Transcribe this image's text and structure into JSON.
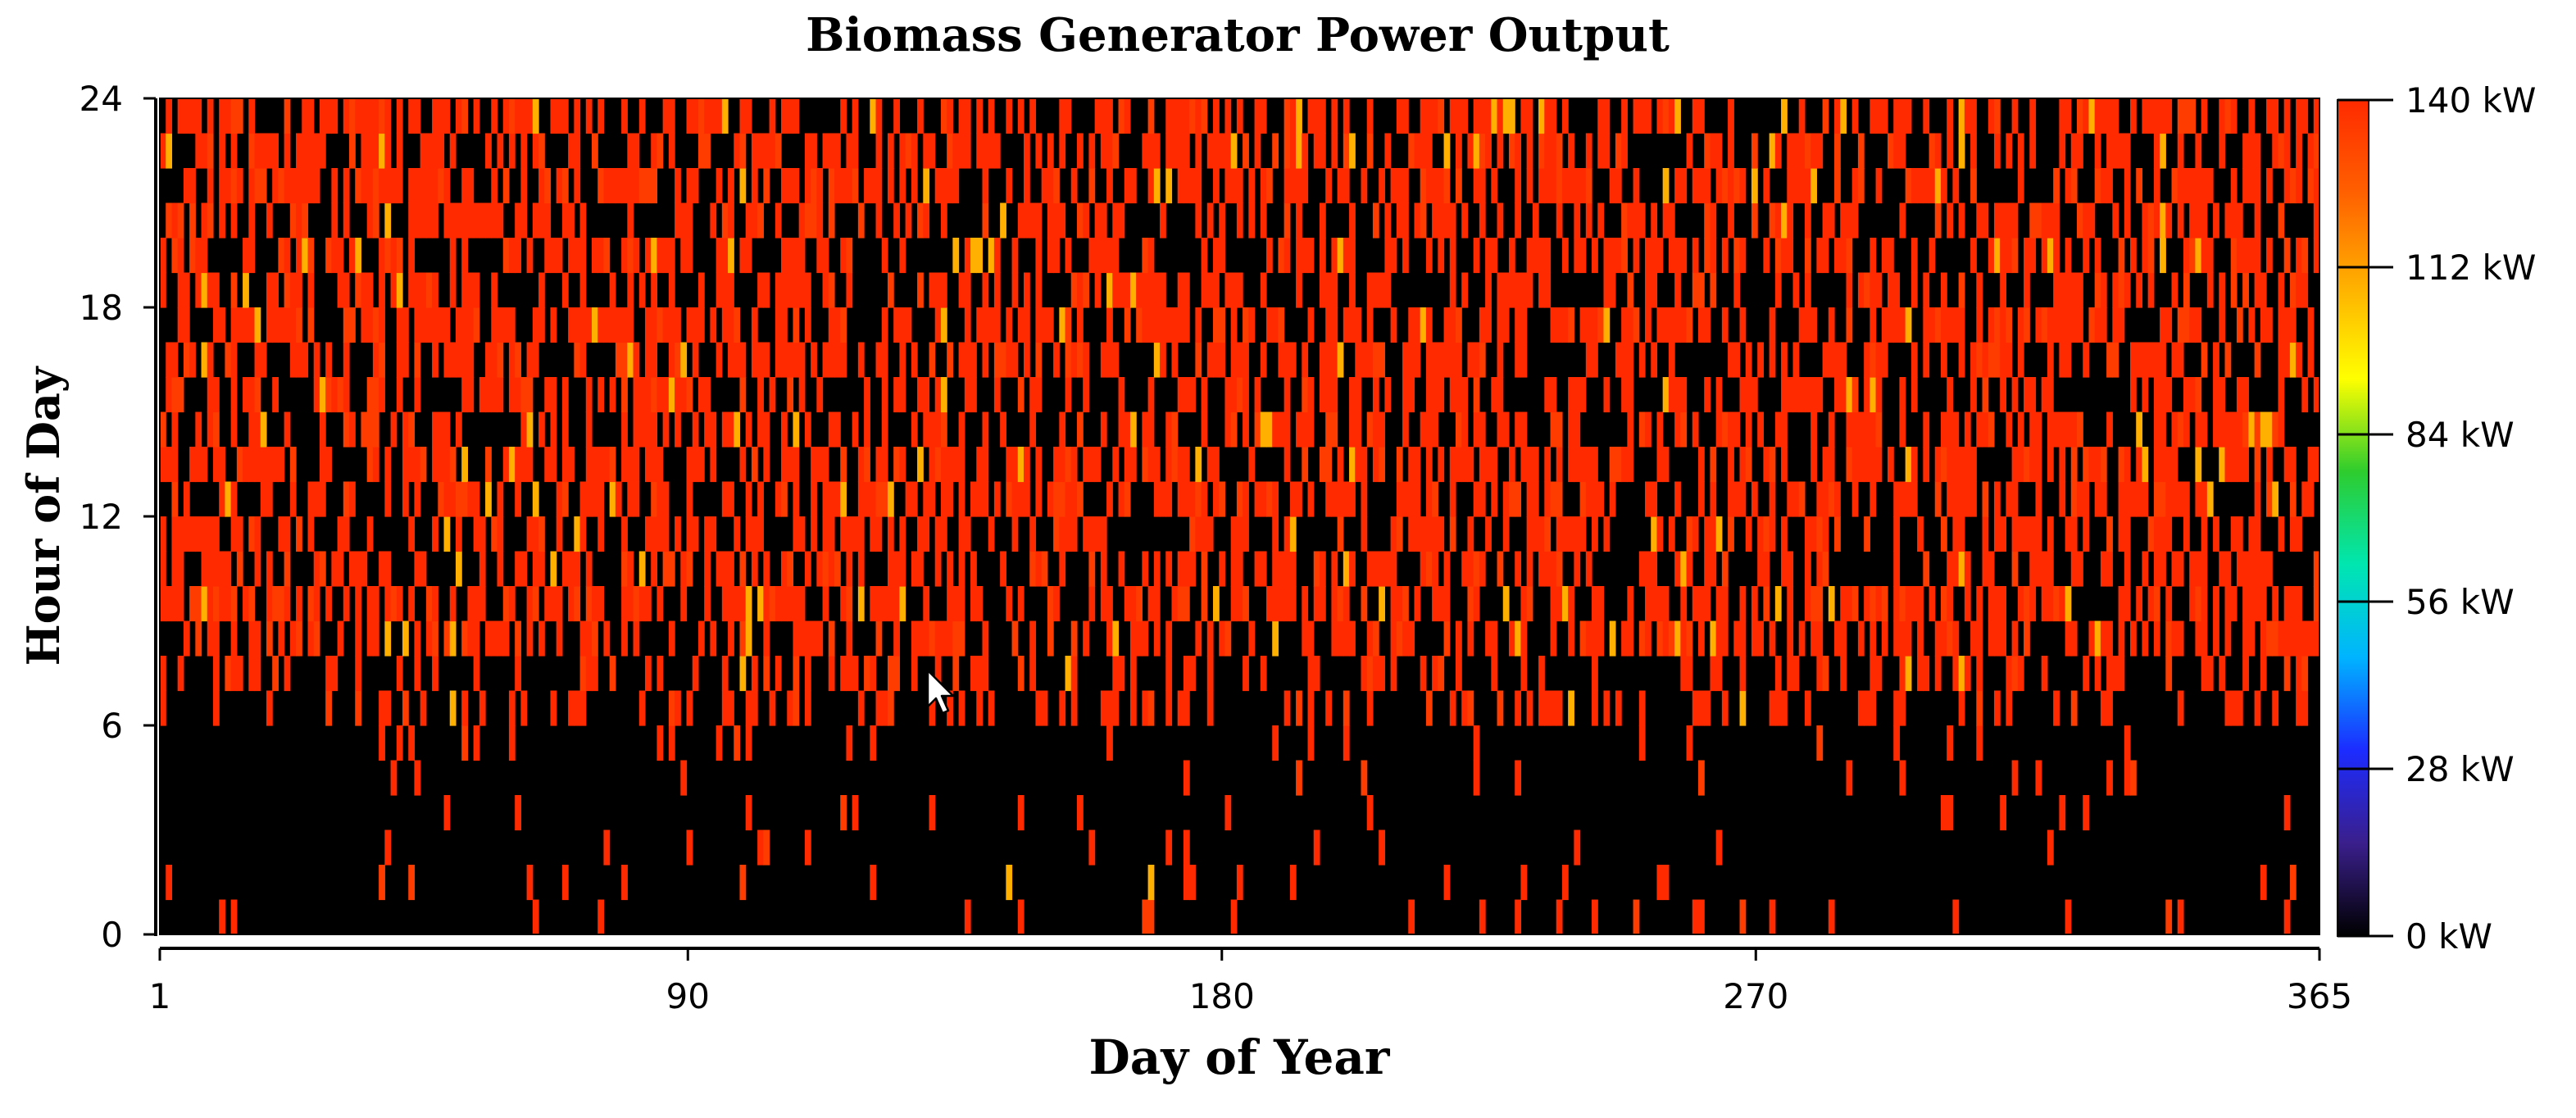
{
  "chart_data": {
    "type": "heatmap",
    "title": "Biomass Generator Power Output",
    "xlabel": "Day of Year",
    "ylabel": "Hour of Day",
    "x_range": [
      1,
      365
    ],
    "y_range": [
      0,
      24
    ],
    "x_ticks": [
      "1",
      "90",
      "180",
      "270",
      "365"
    ],
    "y_ticks": [
      "0",
      "6",
      "12",
      "18",
      "24"
    ],
    "colorbar": {
      "range": [
        0,
        140
      ],
      "unit": "kW",
      "ticks": [
        "0 kW",
        "28 kW",
        "56 kW",
        "84 kW",
        "112 kW",
        "140 kW"
      ],
      "colors": [
        "#000000",
        "#3a1f8c",
        "#1c2cff",
        "#00b4ff",
        "#00e6b0",
        "#2ecc2e",
        "#ffff00",
        "#ffb000",
        "#ff6000",
        "#ff2a00"
      ]
    },
    "rated_output_kw": 140,
    "pattern": {
      "description_is_visual": true,
      "night_hours_mostly_off": [
        0,
        6
      ],
      "day_hours_mostly_on": [
        6,
        24
      ],
      "typical_value_when_on_kw": 135
    }
  }
}
